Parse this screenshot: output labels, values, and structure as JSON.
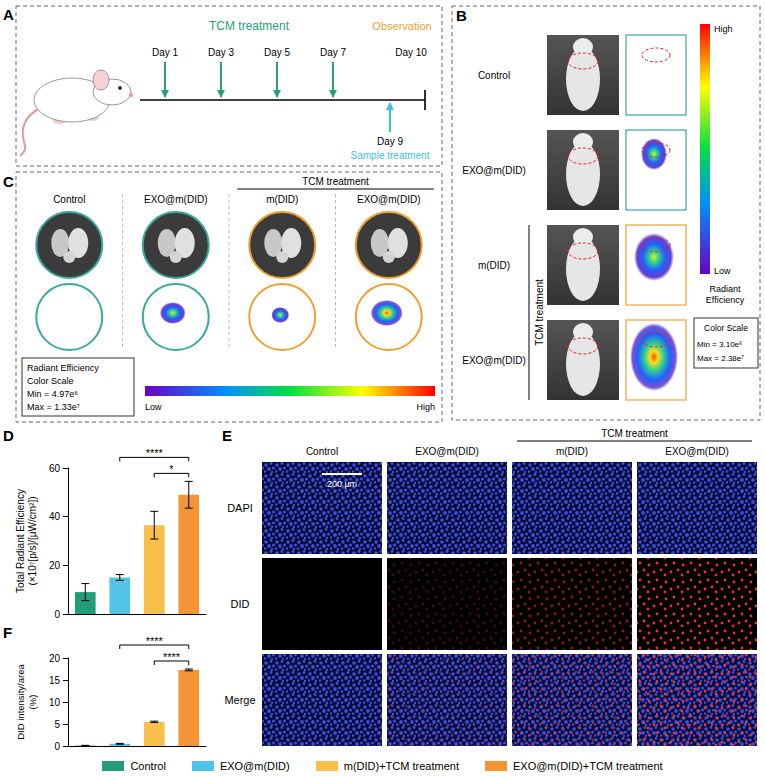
{
  "chart_data": [
    {
      "type": "bar",
      "ylabel": "Total Radiant Efficiency (×10⁷[p/s]/[μW/cm²])",
      "categories": [
        null,
        null,
        null,
        null
      ],
      "values": [
        9,
        15,
        36.5,
        49
      ],
      "errors": [
        3.5,
        1.2,
        5.7,
        5.5
      ],
      "colors": [
        "#239c7a",
        "#52c5e6",
        "#f8c04a",
        "#f39436"
      ],
      "ylim": [
        0,
        60
      ],
      "yticks": [
        0,
        20,
        40,
        60
      ],
      "grid": false,
      "significance": [
        {
          "from": 1,
          "to": 3,
          "label": "****"
        },
        {
          "from": 2,
          "to": 3,
          "label": "*"
        }
      ]
    },
    {
      "type": "bar",
      "ylabel": "DID intensity/area (%)",
      "categories": [
        null,
        null,
        null,
        null
      ],
      "values": [
        0.1,
        0.5,
        5.5,
        17.3
      ],
      "errors": [
        0.05,
        0.1,
        0.15,
        0.2
      ],
      "colors": [
        "#239c7a",
        "#52c5e6",
        "#f8c04a",
        "#f39436"
      ],
      "ylim": [
        0,
        20
      ],
      "yticks": [
        0,
        5,
        10,
        15,
        20
      ],
      "grid": false,
      "significance": [
        {
          "from": 1,
          "to": 3,
          "label": "****"
        },
        {
          "from": 2,
          "to": 3,
          "label": "****"
        }
      ]
    }
  ],
  "panels": {
    "A": {
      "letter": "A",
      "header": "TCM treatment",
      "treatment_days": [
        "Day 1",
        "Day 3",
        "Day 5",
        "Day 7"
      ],
      "observation": {
        "label": "Observation",
        "day": "Day 10"
      },
      "sample": {
        "day": "Day 9",
        "label": "Sample treatment"
      }
    },
    "B": {
      "letter": "B",
      "rows": [
        "Control",
        "EXO@m(DID)",
        "m(DID)",
        "EXO@m(DID)"
      ],
      "group": {
        "label": "TCM treatment",
        "rows": [
          2,
          3
        ]
      },
      "colorbar": {
        "high": "High",
        "low": "Low",
        "title": "Radiant Efficiency",
        "scale_title": "Color Scale",
        "min": "Min = 3.10e⁶",
        "max": "Max = 2.38e⁷"
      }
    },
    "C": {
      "letter": "C",
      "columns": [
        "Control",
        "EXO@m(DID)",
        "m(DID)",
        "EXO@m(DID)"
      ],
      "group": {
        "label": "TCM treatment",
        "columns": [
          2,
          3
        ]
      },
      "colorbar": {
        "title": "Radiant Efficiency",
        "scale_title": "Color Scale",
        "min": "Min = 4.97e⁶",
        "max": "Max = 1.33e⁷",
        "low": "Low",
        "high": "High"
      }
    },
    "D": {
      "letter": "D"
    },
    "E": {
      "letter": "E",
      "columns": [
        "Control",
        "EXO@m(DID)",
        "m(DID)",
        "EXO@m(DID)"
      ],
      "group": {
        "label": "TCM treatment",
        "columns": [
          2,
          3
        ]
      },
      "rows": [
        "DAPI",
        "DID",
        "Merge"
      ],
      "scale_bar": "200 μm"
    },
    "F": {
      "letter": "F"
    },
    "legend": {
      "items": [
        "Control",
        "EXO@m(DID)",
        "m(DID)+TCM treatment",
        "EXO@m(DID)+TCM treatment"
      ]
    }
  }
}
